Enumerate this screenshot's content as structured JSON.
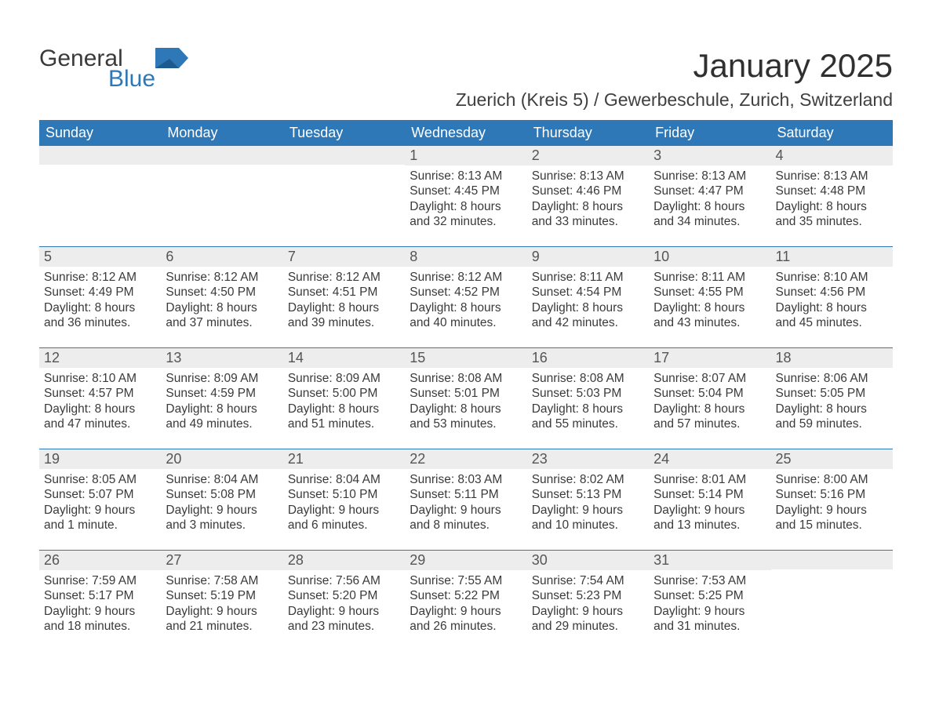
{
  "logo": {
    "text1": "General",
    "text2": "Blue",
    "icon_color": "#2f78b7"
  },
  "title": "January 2025",
  "location": "Zuerich (Kreis 5) / Gewerbeschule, Zurich, Switzerland",
  "colors": {
    "header_bg": "#2f78b7",
    "header_text": "#ffffff",
    "daynum_bg": "#ededed",
    "border": "#2f78b7",
    "body_text": "#3a3a3a"
  },
  "weekdays": [
    "Sunday",
    "Monday",
    "Tuesday",
    "Wednesday",
    "Thursday",
    "Friday",
    "Saturday"
  ],
  "weeks": [
    [
      {
        "day": "",
        "sunrise": "",
        "sunset": "",
        "daylight": ""
      },
      {
        "day": "",
        "sunrise": "",
        "sunset": "",
        "daylight": ""
      },
      {
        "day": "",
        "sunrise": "",
        "sunset": "",
        "daylight": ""
      },
      {
        "day": "1",
        "sunrise": "Sunrise: 8:13 AM",
        "sunset": "Sunset: 4:45 PM",
        "daylight": "Daylight: 8 hours and 32 minutes."
      },
      {
        "day": "2",
        "sunrise": "Sunrise: 8:13 AM",
        "sunset": "Sunset: 4:46 PM",
        "daylight": "Daylight: 8 hours and 33 minutes."
      },
      {
        "day": "3",
        "sunrise": "Sunrise: 8:13 AM",
        "sunset": "Sunset: 4:47 PM",
        "daylight": "Daylight: 8 hours and 34 minutes."
      },
      {
        "day": "4",
        "sunrise": "Sunrise: 8:13 AM",
        "sunset": "Sunset: 4:48 PM",
        "daylight": "Daylight: 8 hours and 35 minutes."
      }
    ],
    [
      {
        "day": "5",
        "sunrise": "Sunrise: 8:12 AM",
        "sunset": "Sunset: 4:49 PM",
        "daylight": "Daylight: 8 hours and 36 minutes."
      },
      {
        "day": "6",
        "sunrise": "Sunrise: 8:12 AM",
        "sunset": "Sunset: 4:50 PM",
        "daylight": "Daylight: 8 hours and 37 minutes."
      },
      {
        "day": "7",
        "sunrise": "Sunrise: 8:12 AM",
        "sunset": "Sunset: 4:51 PM",
        "daylight": "Daylight: 8 hours and 39 minutes."
      },
      {
        "day": "8",
        "sunrise": "Sunrise: 8:12 AM",
        "sunset": "Sunset: 4:52 PM",
        "daylight": "Daylight: 8 hours and 40 minutes."
      },
      {
        "day": "9",
        "sunrise": "Sunrise: 8:11 AM",
        "sunset": "Sunset: 4:54 PM",
        "daylight": "Daylight: 8 hours and 42 minutes."
      },
      {
        "day": "10",
        "sunrise": "Sunrise: 8:11 AM",
        "sunset": "Sunset: 4:55 PM",
        "daylight": "Daylight: 8 hours and 43 minutes."
      },
      {
        "day": "11",
        "sunrise": "Sunrise: 8:10 AM",
        "sunset": "Sunset: 4:56 PM",
        "daylight": "Daylight: 8 hours and 45 minutes."
      }
    ],
    [
      {
        "day": "12",
        "sunrise": "Sunrise: 8:10 AM",
        "sunset": "Sunset: 4:57 PM",
        "daylight": "Daylight: 8 hours and 47 minutes."
      },
      {
        "day": "13",
        "sunrise": "Sunrise: 8:09 AM",
        "sunset": "Sunset: 4:59 PM",
        "daylight": "Daylight: 8 hours and 49 minutes."
      },
      {
        "day": "14",
        "sunrise": "Sunrise: 8:09 AM",
        "sunset": "Sunset: 5:00 PM",
        "daylight": "Daylight: 8 hours and 51 minutes."
      },
      {
        "day": "15",
        "sunrise": "Sunrise: 8:08 AM",
        "sunset": "Sunset: 5:01 PM",
        "daylight": "Daylight: 8 hours and 53 minutes."
      },
      {
        "day": "16",
        "sunrise": "Sunrise: 8:08 AM",
        "sunset": "Sunset: 5:03 PM",
        "daylight": "Daylight: 8 hours and 55 minutes."
      },
      {
        "day": "17",
        "sunrise": "Sunrise: 8:07 AM",
        "sunset": "Sunset: 5:04 PM",
        "daylight": "Daylight: 8 hours and 57 minutes."
      },
      {
        "day": "18",
        "sunrise": "Sunrise: 8:06 AM",
        "sunset": "Sunset: 5:05 PM",
        "daylight": "Daylight: 8 hours and 59 minutes."
      }
    ],
    [
      {
        "day": "19",
        "sunrise": "Sunrise: 8:05 AM",
        "sunset": "Sunset: 5:07 PM",
        "daylight": "Daylight: 9 hours and 1 minute."
      },
      {
        "day": "20",
        "sunrise": "Sunrise: 8:04 AM",
        "sunset": "Sunset: 5:08 PM",
        "daylight": "Daylight: 9 hours and 3 minutes."
      },
      {
        "day": "21",
        "sunrise": "Sunrise: 8:04 AM",
        "sunset": "Sunset: 5:10 PM",
        "daylight": "Daylight: 9 hours and 6 minutes."
      },
      {
        "day": "22",
        "sunrise": "Sunrise: 8:03 AM",
        "sunset": "Sunset: 5:11 PM",
        "daylight": "Daylight: 9 hours and 8 minutes."
      },
      {
        "day": "23",
        "sunrise": "Sunrise: 8:02 AM",
        "sunset": "Sunset: 5:13 PM",
        "daylight": "Daylight: 9 hours and 10 minutes."
      },
      {
        "day": "24",
        "sunrise": "Sunrise: 8:01 AM",
        "sunset": "Sunset: 5:14 PM",
        "daylight": "Daylight: 9 hours and 13 minutes."
      },
      {
        "day": "25",
        "sunrise": "Sunrise: 8:00 AM",
        "sunset": "Sunset: 5:16 PM",
        "daylight": "Daylight: 9 hours and 15 minutes."
      }
    ],
    [
      {
        "day": "26",
        "sunrise": "Sunrise: 7:59 AM",
        "sunset": "Sunset: 5:17 PM",
        "daylight": "Daylight: 9 hours and 18 minutes."
      },
      {
        "day": "27",
        "sunrise": "Sunrise: 7:58 AM",
        "sunset": "Sunset: 5:19 PM",
        "daylight": "Daylight: 9 hours and 21 minutes."
      },
      {
        "day": "28",
        "sunrise": "Sunrise: 7:56 AM",
        "sunset": "Sunset: 5:20 PM",
        "daylight": "Daylight: 9 hours and 23 minutes."
      },
      {
        "day": "29",
        "sunrise": "Sunrise: 7:55 AM",
        "sunset": "Sunset: 5:22 PM",
        "daylight": "Daylight: 9 hours and 26 minutes."
      },
      {
        "day": "30",
        "sunrise": "Sunrise: 7:54 AM",
        "sunset": "Sunset: 5:23 PM",
        "daylight": "Daylight: 9 hours and 29 minutes."
      },
      {
        "day": "31",
        "sunrise": "Sunrise: 7:53 AM",
        "sunset": "Sunset: 5:25 PM",
        "daylight": "Daylight: 9 hours and 31 minutes."
      },
      {
        "day": "",
        "sunrise": "",
        "sunset": "",
        "daylight": ""
      }
    ]
  ]
}
